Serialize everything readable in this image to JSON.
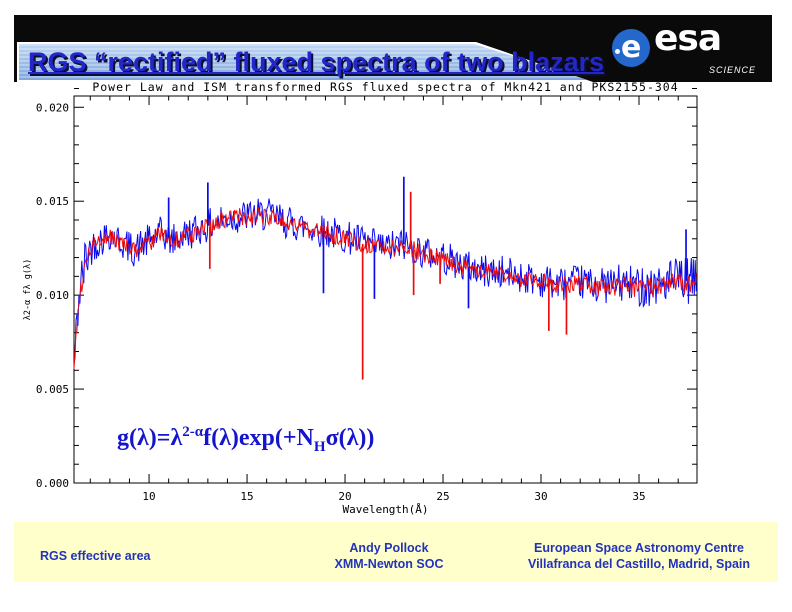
{
  "header": {
    "title": "RGS “rectified” fluxed spectra of two blazars",
    "esa": {
      "wordmark": "esa",
      "circle_letter": "e",
      "science_label": "SCIENCE",
      "logo_blue": "#2468cc"
    }
  },
  "chart_data": {
    "type": "line",
    "title": "Power Law and ISM transformed RGS fluxed spectra of Mkn421 and PKS2155-304",
    "xlabel": "Wavelength(Å)",
    "ylabel": "λ2-α fλ g(λ)",
    "xlim": [
      6.17,
      37.96
    ],
    "ylim": [
      0,
      0.0206
    ],
    "xticks_major": [
      10,
      15,
      20,
      25,
      30,
      35
    ],
    "xtick_minor_step": 1,
    "yticks_major": [
      0.0,
      0.005,
      0.01,
      0.015,
      0.02
    ],
    "ytick_labels": [
      "0.000",
      "0.005",
      "0.010",
      "0.015",
      "0.020"
    ],
    "ytick_minor_step": 0.001,
    "grid": false,
    "legend": "none",
    "frame_color": "#000000",
    "series": [
      {
        "name": "Mkn421",
        "color": "#0b0bee",
        "noise": 0.0009,
        "noise_right": 0.0013,
        "envelope": [
          [
            6.17,
            0.006
          ],
          [
            6.4,
            0.0098
          ],
          [
            6.8,
            0.0121
          ],
          [
            7.2,
            0.0127
          ],
          [
            8.0,
            0.0133
          ],
          [
            8.6,
            0.0128
          ],
          [
            9.2,
            0.0124
          ],
          [
            10.0,
            0.0129
          ],
          [
            10.6,
            0.0133
          ],
          [
            11.2,
            0.0129
          ],
          [
            12.0,
            0.0133
          ],
          [
            13.0,
            0.0137
          ],
          [
            14.0,
            0.0141
          ],
          [
            15.0,
            0.0142
          ],
          [
            16.0,
            0.0143
          ],
          [
            17.0,
            0.0139
          ],
          [
            18.0,
            0.0136
          ],
          [
            19.0,
            0.0134
          ],
          [
            20.0,
            0.0131
          ],
          [
            21.0,
            0.0128
          ],
          [
            22.0,
            0.0125
          ],
          [
            23.0,
            0.0127
          ],
          [
            24.0,
            0.0123
          ],
          [
            25.0,
            0.012
          ],
          [
            26.0,
            0.0116
          ],
          [
            27.0,
            0.0113
          ],
          [
            28.0,
            0.0112
          ],
          [
            29.0,
            0.011
          ],
          [
            30.0,
            0.0108
          ],
          [
            31.0,
            0.0106
          ],
          [
            32.0,
            0.0107
          ],
          [
            33.0,
            0.0105
          ],
          [
            34.0,
            0.0106
          ],
          [
            35.0,
            0.0105
          ],
          [
            36.0,
            0.0106
          ],
          [
            37.0,
            0.0108
          ],
          [
            37.96,
            0.0107
          ]
        ]
      },
      {
        "name": "PKS2155-304",
        "color": "#ee0b0b",
        "noise": 0.00048,
        "noise_right": 0.0006,
        "envelope": [
          [
            6.17,
            0.0062
          ],
          [
            6.4,
            0.0096
          ],
          [
            6.8,
            0.012
          ],
          [
            7.2,
            0.0126
          ],
          [
            8.0,
            0.0132
          ],
          [
            8.6,
            0.0127
          ],
          [
            9.2,
            0.0124
          ],
          [
            10.0,
            0.0128
          ],
          [
            10.6,
            0.0132
          ],
          [
            11.2,
            0.0128
          ],
          [
            12.0,
            0.0132
          ],
          [
            13.0,
            0.0136
          ],
          [
            14.0,
            0.0141
          ],
          [
            15.0,
            0.0142
          ],
          [
            16.0,
            0.0142
          ],
          [
            17.0,
            0.0139
          ],
          [
            18.0,
            0.0135
          ],
          [
            19.0,
            0.0133
          ],
          [
            20.0,
            0.013
          ],
          [
            21.0,
            0.0127
          ],
          [
            22.0,
            0.0124
          ],
          [
            23.0,
            0.0126
          ],
          [
            24.0,
            0.0122
          ],
          [
            25.0,
            0.0119
          ],
          [
            26.0,
            0.0115
          ],
          [
            27.0,
            0.0112
          ],
          [
            28.0,
            0.0111
          ],
          [
            29.0,
            0.0109
          ],
          [
            30.0,
            0.0107
          ],
          [
            31.0,
            0.0105
          ],
          [
            32.0,
            0.0106
          ],
          [
            33.0,
            0.0104
          ],
          [
            34.0,
            0.0105
          ],
          [
            35.0,
            0.0104
          ],
          [
            36.0,
            0.0105
          ],
          [
            37.0,
            0.0107
          ],
          [
            37.96,
            0.0106
          ]
        ]
      }
    ],
    "features": [
      {
        "series": 1,
        "x": 20.9,
        "y": 0.0055
      },
      {
        "series": 1,
        "x": 23.35,
        "y": 0.0155
      },
      {
        "series": 1,
        "x": 23.5,
        "y": 0.01
      },
      {
        "series": 1,
        "x": 13.1,
        "y": 0.0114
      },
      {
        "series": 1,
        "x": 24.85,
        "y": 0.0106
      },
      {
        "series": 1,
        "x": 30.4,
        "y": 0.0081
      },
      {
        "series": 1,
        "x": 31.3,
        "y": 0.0079
      },
      {
        "series": 0,
        "x": 23.0,
        "y": 0.0163
      },
      {
        "series": 0,
        "x": 13.0,
        "y": 0.016
      },
      {
        "series": 0,
        "x": 11.0,
        "y": 0.0152
      },
      {
        "series": 0,
        "x": 18.9,
        "y": 0.0101
      },
      {
        "series": 0,
        "x": 21.5,
        "y": 0.0098
      },
      {
        "series": 0,
        "x": 26.3,
        "y": 0.0093
      },
      {
        "series": 0,
        "x": 37.4,
        "y": 0.0135
      }
    ]
  },
  "formula": {
    "p1": "g(λ)=λ",
    "sup": "2-α",
    "p2": "f(λ)exp(+N",
    "sub": "H",
    "p3": "σ(λ))"
  },
  "footer": {
    "left": "RGS effective area",
    "center": [
      "Andy Pollock",
      "XMM-Newton SOC"
    ],
    "right": [
      "European Space Astronomy Centre",
      "Villafranca del Castillo, Madrid, Spain"
    ]
  }
}
